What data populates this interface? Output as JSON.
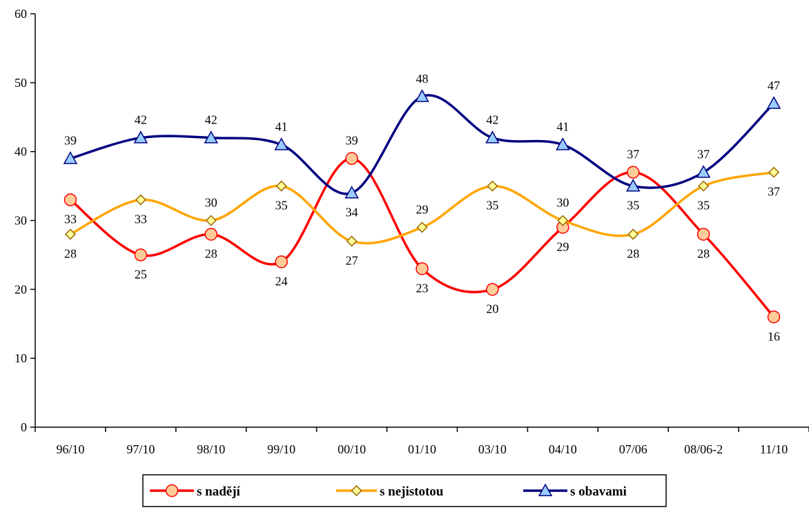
{
  "chart_data": {
    "type": "line",
    "title": "",
    "xlabel": "",
    "ylabel": "",
    "categories": [
      "96/10",
      "97/10",
      "98/10",
      "99/10",
      "00/10",
      "01/10",
      "03/10",
      "04/10",
      "07/06",
      "08/06-2",
      "11/10"
    ],
    "ylim": [
      0,
      60
    ],
    "yticks": [
      0,
      10,
      20,
      30,
      40,
      50,
      60
    ],
    "grid": false,
    "legend_position": "bottom",
    "smooth": true,
    "series": [
      {
        "name": "s nadějí",
        "values": [
          33,
          25,
          28,
          24,
          39,
          23,
          20,
          29,
          37,
          28,
          16
        ],
        "color": "#ff0000",
        "marker": "circle",
        "marker_fill": "#ffcc99",
        "label_pos": [
          "below",
          "below",
          "below",
          "below",
          "above",
          "below",
          "below",
          "below",
          "above",
          "below",
          "below"
        ]
      },
      {
        "name": "s nejistotou",
        "values": [
          28,
          33,
          30,
          35,
          27,
          29,
          35,
          30,
          28,
          35,
          37
        ],
        "color": "#ffa500",
        "marker": "diamond",
        "marker_fill": "#ffff99",
        "label_pos": [
          "below",
          "below",
          "above",
          "below",
          "below",
          "above",
          "below",
          "above",
          "below",
          "below",
          "below"
        ]
      },
      {
        "name": "s obavami",
        "values": [
          39,
          42,
          42,
          41,
          34,
          48,
          42,
          41,
          35,
          37,
          47
        ],
        "color": "#000080",
        "marker": "triangle",
        "marker_fill": "#99ccff",
        "label_pos": [
          "above",
          "above",
          "above",
          "above",
          "below",
          "above",
          "above",
          "above",
          "below",
          "above",
          "above"
        ]
      }
    ]
  }
}
